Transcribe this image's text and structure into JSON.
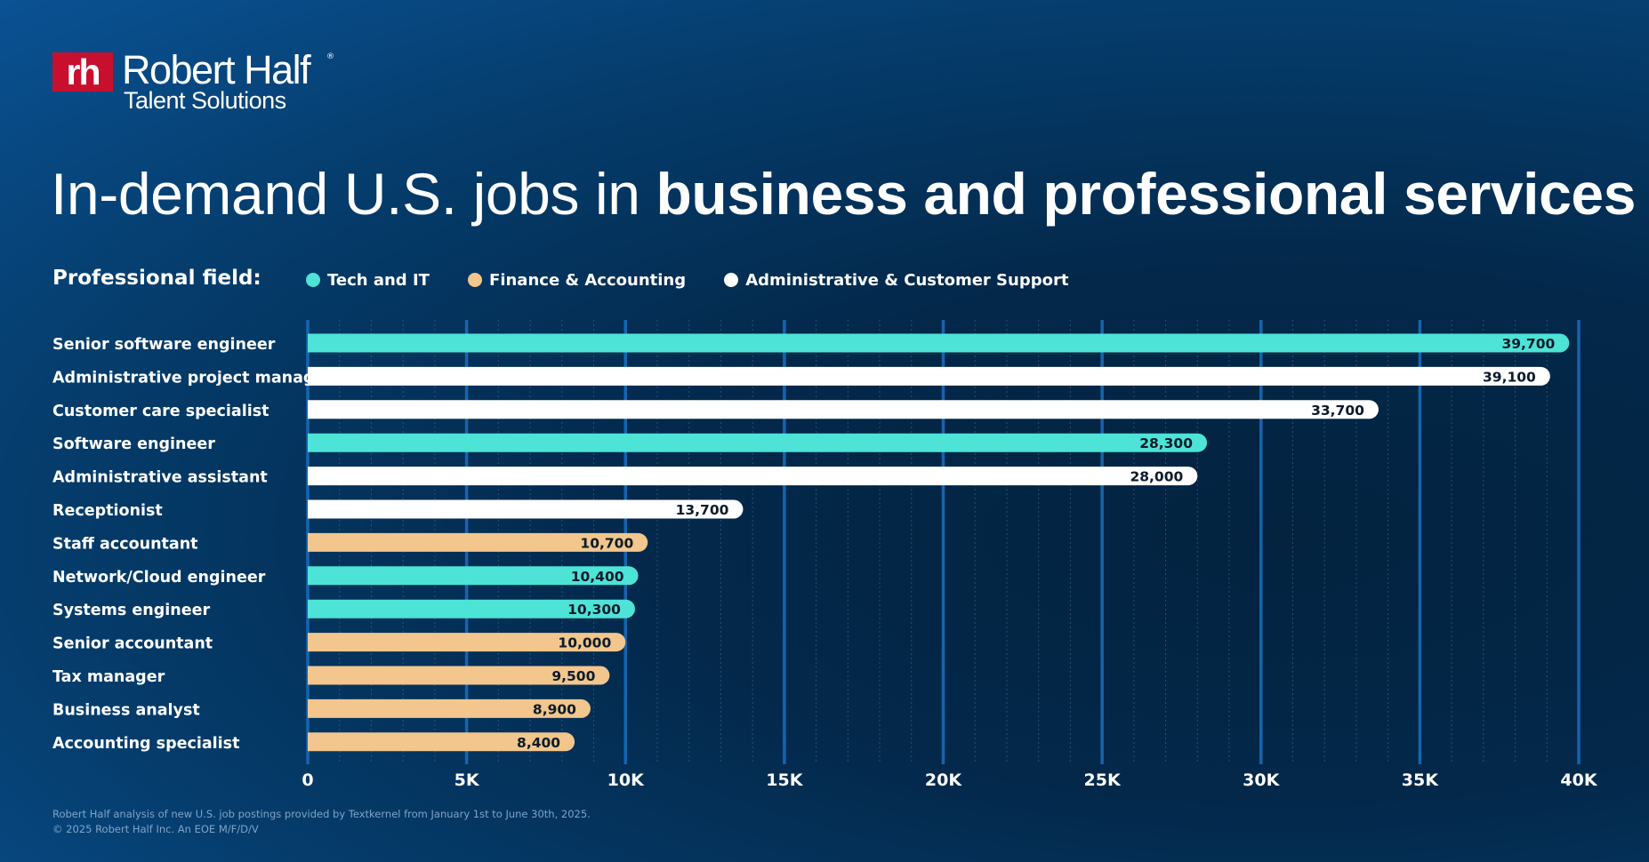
{
  "logo": {
    "mark": "rh",
    "name": "Robert Half",
    "registered": "®",
    "subtitle": "Talent Solutions"
  },
  "headline": {
    "light": "In-demand U.S. jobs in",
    "bold": "business and professional services"
  },
  "legend": {
    "label": "Professional field:",
    "items": [
      {
        "key": "tech",
        "name": "Tech and IT",
        "color": "#4de3d6"
      },
      {
        "key": "finance",
        "name": "Finance & Accounting",
        "color": "#f2c68c"
      },
      {
        "key": "admin",
        "name": "Administrative & Customer Support",
        "color": "#ffffff"
      }
    ]
  },
  "chart_data": {
    "type": "bar",
    "orientation": "horizontal",
    "categories": [
      "Senior software engineer",
      "Administrative project manager",
      "Customer care specialist",
      "Software engineer",
      "Administrative assistant",
      "Receptionist",
      "Staff accountant",
      "Network/Cloud engineer",
      "Systems engineer",
      "Senior accountant",
      "Tax manager",
      "Business analyst",
      "Accounting specialist"
    ],
    "values": [
      39700,
      39100,
      33700,
      28300,
      28000,
      13700,
      10700,
      10400,
      10300,
      10000,
      9500,
      8900,
      8400
    ],
    "value_labels": [
      "39,700",
      "39,100",
      "33,700",
      "28,300",
      "28,000",
      "13,700",
      "10,700",
      "10,400",
      "10,300",
      "10,000",
      "9,500",
      "8,900",
      "8,400"
    ],
    "fields": [
      "tech",
      "admin",
      "admin",
      "tech",
      "admin",
      "admin",
      "finance",
      "tech",
      "tech",
      "finance",
      "finance",
      "finance",
      "finance"
    ],
    "xlim": [
      0,
      40000
    ],
    "xticks": [
      0,
      5000,
      10000,
      15000,
      20000,
      25000,
      30000,
      35000,
      40000
    ],
    "xtick_labels": [
      "0",
      "5K",
      "10K",
      "15K",
      "20K",
      "25K",
      "30K",
      "35K",
      "40K"
    ],
    "grid": true,
    "legend_position": "top-left"
  },
  "footnote": {
    "line1": "Robert Half analysis of new U.S. job postings provided by Textkernel from January 1st to June 30th, 2025.",
    "line2": "© 2025 Robert Half Inc. An EOE M/F/D/V"
  }
}
